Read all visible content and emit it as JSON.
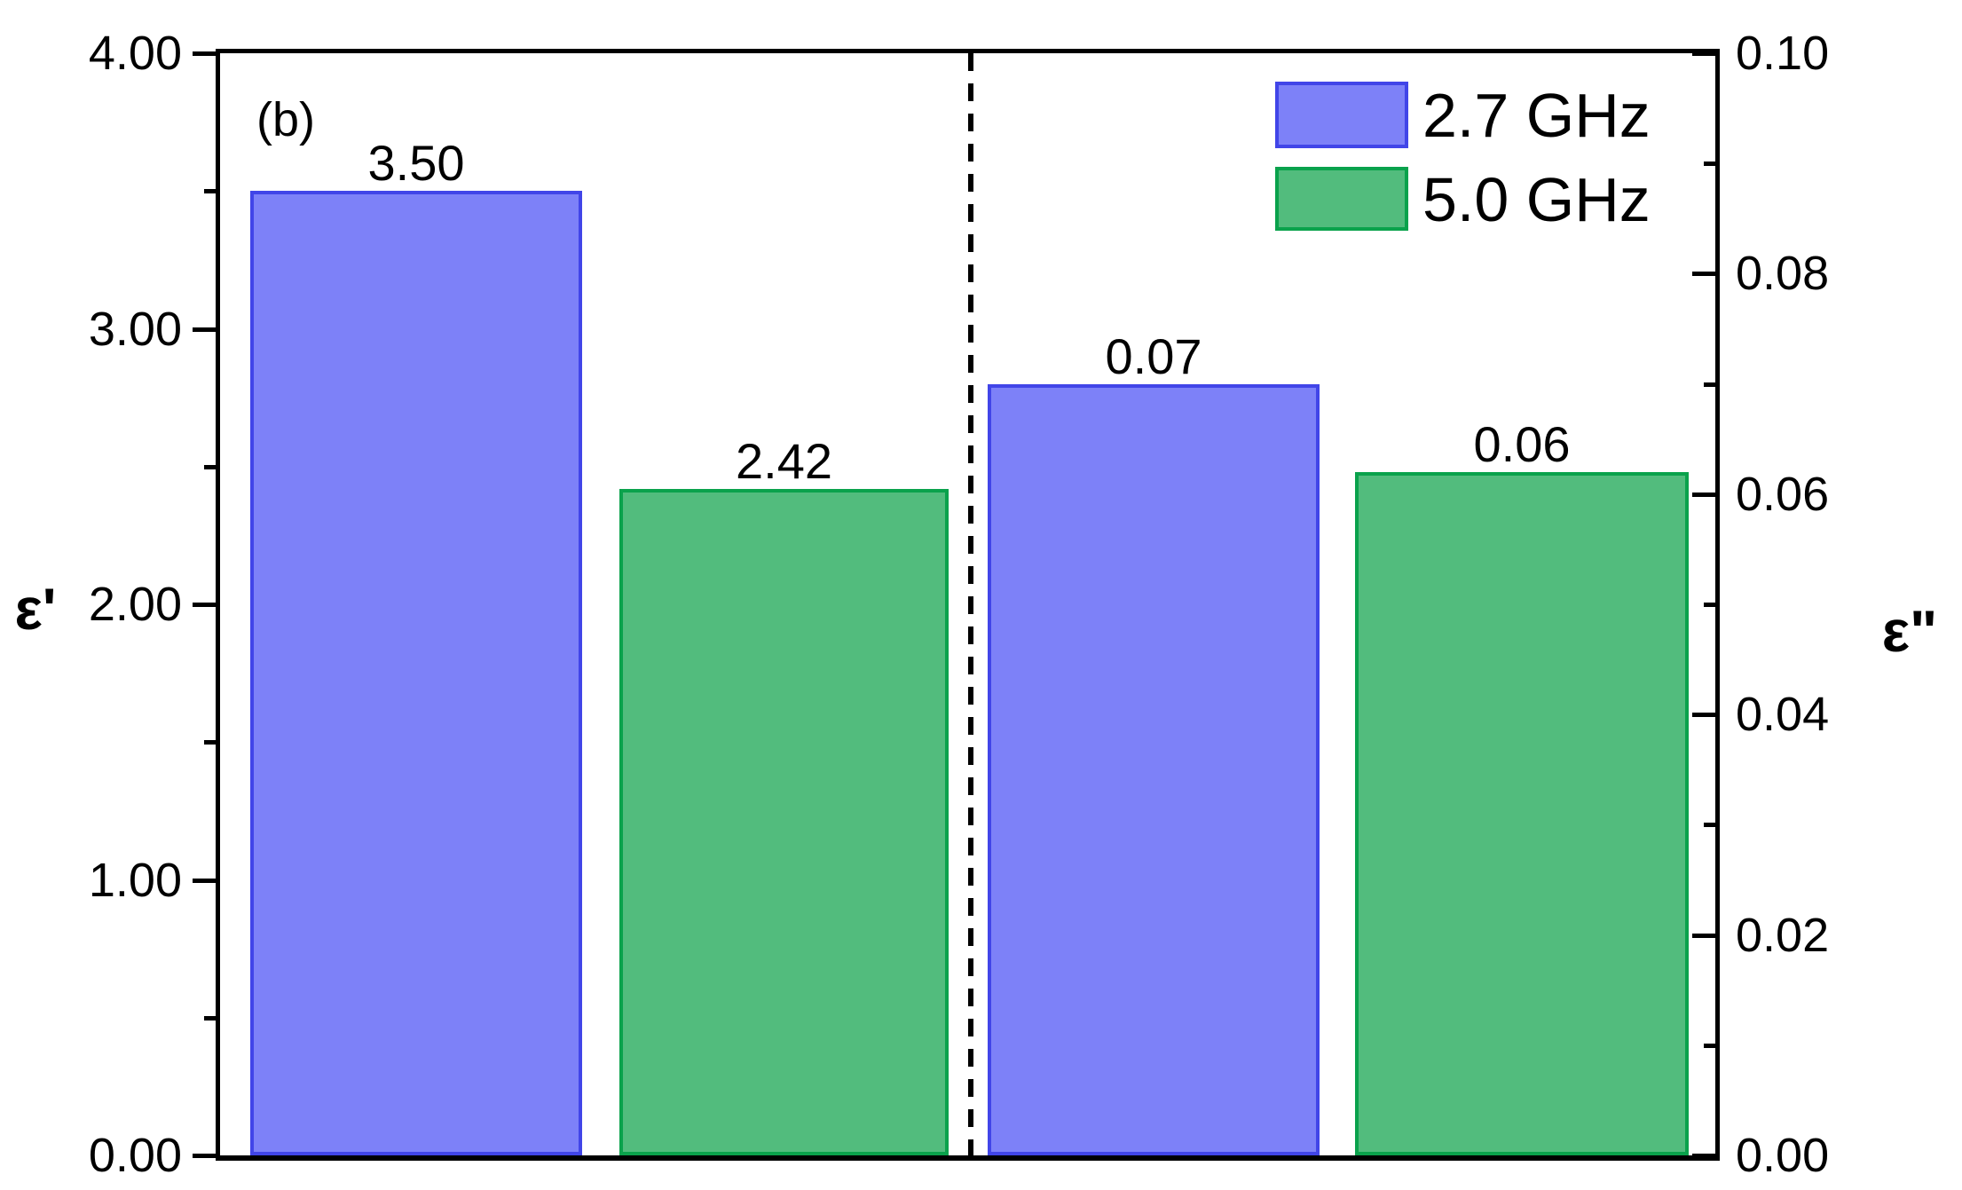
{
  "panel_label": "(b)",
  "chart_data": {
    "type": "bar",
    "panel": "(b)",
    "categories": [
      "ε' (left axis group)",
      "ε\" (right axis group)"
    ],
    "series": [
      {
        "name": "2.7 GHz",
        "fill": "#7d81f8",
        "border": "#4145e8",
        "values": [
          3.5,
          0.07
        ]
      },
      {
        "name": "5.0 GHz",
        "fill": "#52bc7d",
        "border": "#0aa24c",
        "values": [
          2.42,
          0.06
        ]
      }
    ],
    "left_axis": {
      "label": "ε'",
      "min": 0.0,
      "max": 4.0,
      "major_tick_step": 1.0,
      "minor_tick_step": 0.5,
      "tick_labels": [
        "4.00",
        "3.00",
        "2.00",
        "1.00",
        "0.00"
      ]
    },
    "right_axis": {
      "label": "ε\"",
      "min": 0.0,
      "max": 0.1,
      "major_tick_step": 0.02,
      "minor_tick_step": 0.01,
      "tick_labels": [
        "0.10",
        "0.08",
        "0.06",
        "0.04",
        "0.02",
        "0.00"
      ]
    },
    "legend_position": "top-right",
    "grid": false,
    "separator": "vertical dashed line between the ε' and ε\" bar groups"
  },
  "bars": [
    {
      "series": "2.7 GHz",
      "axis": "left",
      "label": "3.50",
      "value": 3.5,
      "series_index": 0
    },
    {
      "series": "5.0 GHz",
      "axis": "left",
      "label": "2.42",
      "value": 2.42,
      "series_index": 1
    },
    {
      "series": "2.7 GHz",
      "axis": "right",
      "label": "0.07",
      "value": 0.07,
      "series_index": 0
    },
    {
      "series": "5.0 GHz",
      "axis": "right",
      "label": "0.06",
      "value": 0.062,
      "series_index": 1
    }
  ],
  "colors": {
    "blue_fill": "#7d81f8",
    "blue_border": "#4145e8",
    "green_fill": "#52bc7d",
    "green_border": "#0aa24c",
    "axis": "#000000"
  }
}
